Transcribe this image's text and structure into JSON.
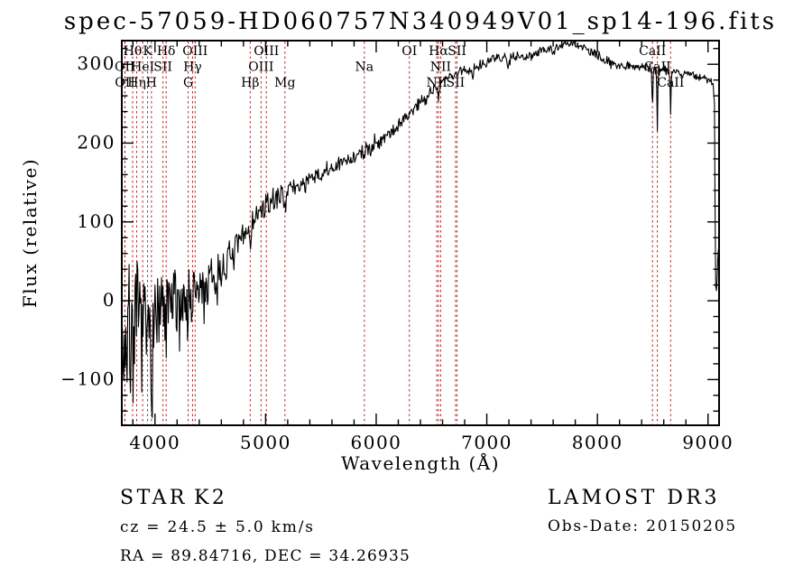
{
  "title": "spec-57059-HD060757N340949V01_sp14-196.fits",
  "annotations": {
    "class_label": "STAR",
    "subclass": "K2",
    "survey": "LAMOST DR3",
    "cz": "cz = 24.5 ± 5.0 km/s",
    "obs_date": "Obs-Date: 20150205",
    "ra_dec": "RA =  89.84716, DEC =  34.26935"
  },
  "chart_data": {
    "type": "line",
    "title": "spec-57059-HD060757N340949V01_sp14-196.fits",
    "xlabel": "Wavelength (Å)",
    "ylabel": "Flux (relative)",
    "xlim": [
      3700,
      9100
    ],
    "ylim": [
      -158,
      330
    ],
    "xticks": [
      4000,
      5000,
      6000,
      7000,
      8000,
      9000
    ],
    "yticks": [
      -100,
      0,
      100,
      200,
      300
    ],
    "x_minor_step": 200,
    "y_minor_step": 20,
    "grid": false,
    "line_color": "#000000",
    "marker_color": "#b22a2a",
    "spectral_lines": [
      {
        "label": "OII",
        "wavelength": 3727,
        "row": 2
      },
      {
        "label": "OII",
        "wavelength": 3729,
        "row": 3
      },
      {
        "label": "Hθ",
        "wavelength": 3798,
        "row": 1
      },
      {
        "label": "Hη",
        "wavelength": 3835,
        "row": 3
      },
      {
        "label": "HeI",
        "wavelength": 3889,
        "row": 2
      },
      {
        "label": "K",
        "wavelength": 3933,
        "row": 1
      },
      {
        "label": "H",
        "wavelength": 3968,
        "row": 3
      },
      {
        "label": "SII",
        "wavelength": 4072,
        "row": 2
      },
      {
        "label": "Hδ",
        "wavelength": 4101,
        "row": 1
      },
      {
        "label": "G",
        "wavelength": 4300,
        "row": 3
      },
      {
        "label": "Hγ",
        "wavelength": 4340,
        "row": 2
      },
      {
        "label": "OIII",
        "wavelength": 4363,
        "row": 1
      },
      {
        "label": "Hβ",
        "wavelength": 4861,
        "row": 3
      },
      {
        "label": "OIII",
        "wavelength": 4959,
        "row": 2
      },
      {
        "label": "OIII",
        "wavelength": 5007,
        "row": 1
      },
      {
        "label": "Mg",
        "wavelength": 5175,
        "row": 3
      },
      {
        "label": "Na",
        "wavelength": 5893,
        "row": 2
      },
      {
        "label": "OI",
        "wavelength": 6300,
        "row": 1
      },
      {
        "label": "NII",
        "wavelength": 6548,
        "row": 3
      },
      {
        "label": "Hα",
        "wavelength": 6563,
        "row": 1
      },
      {
        "label": "NII",
        "wavelength": 6583,
        "row": 2
      },
      {
        "label": "SII",
        "wavelength": 6717,
        "row": 3
      },
      {
        "label": "SII",
        "wavelength": 6731,
        "row": 1
      },
      {
        "label": "CaII",
        "wavelength": 8498,
        "row": 1
      },
      {
        "label": "CaII",
        "wavelength": 8542,
        "row": 2
      },
      {
        "label": "CaII",
        "wavelength": 8662,
        "row": 3
      }
    ],
    "continuum": [
      [
        3700,
        -50
      ],
      [
        3750,
        -30
      ],
      [
        3850,
        -20
      ],
      [
        3950,
        -25
      ],
      [
        4050,
        -15
      ],
      [
        4150,
        0
      ],
      [
        4250,
        5
      ],
      [
        4350,
        12
      ],
      [
        4450,
        18
      ],
      [
        4550,
        30
      ],
      [
        4650,
        48
      ],
      [
        4750,
        68
      ],
      [
        4850,
        95
      ],
      [
        4950,
        112
      ],
      [
        5050,
        125
      ],
      [
        5150,
        136
      ],
      [
        5250,
        143
      ],
      [
        5350,
        149
      ],
      [
        5450,
        156
      ],
      [
        5550,
        163
      ],
      [
        5650,
        171
      ],
      [
        5750,
        179
      ],
      [
        5850,
        187
      ],
      [
        5950,
        196
      ],
      [
        6050,
        206
      ],
      [
        6150,
        216
      ],
      [
        6250,
        229
      ],
      [
        6350,
        246
      ],
      [
        6450,
        259
      ],
      [
        6550,
        273
      ],
      [
        6650,
        283
      ],
      [
        6750,
        290
      ],
      [
        6850,
        294
      ],
      [
        6950,
        301
      ],
      [
        7050,
        306
      ],
      [
        7150,
        309
      ],
      [
        7250,
        311
      ],
      [
        7350,
        309
      ],
      [
        7450,
        316
      ],
      [
        7550,
        319
      ],
      [
        7650,
        323
      ],
      [
        7750,
        326
      ],
      [
        7850,
        324
      ],
      [
        7950,
        314
      ],
      [
        8050,
        306
      ],
      [
        8150,
        301
      ],
      [
        8250,
        298
      ],
      [
        8350,
        298
      ],
      [
        8450,
        296
      ],
      [
        8550,
        294
      ],
      [
        8650,
        293
      ],
      [
        8750,
        289
      ],
      [
        8850,
        287
      ],
      [
        8950,
        283
      ],
      [
        9020,
        279
      ],
      [
        9048,
        273
      ],
      [
        9058,
        250
      ],
      [
        9064,
        110
      ],
      [
        9070,
        15
      ],
      [
        9078,
        10
      ],
      [
        9086,
        45
      ],
      [
        9092,
        65
      ]
    ],
    "noise_amplitude": [
      [
        3700,
        85
      ],
      [
        3760,
        65
      ],
      [
        3850,
        50
      ],
      [
        3950,
        45
      ],
      [
        4050,
        42
      ],
      [
        4150,
        38
      ],
      [
        4250,
        33
      ],
      [
        4350,
        30
      ],
      [
        4450,
        28
      ],
      [
        4550,
        24
      ],
      [
        4650,
        20
      ],
      [
        4750,
        18
      ],
      [
        4850,
        16
      ],
      [
        4950,
        14
      ],
      [
        5100,
        12
      ],
      [
        5300,
        11
      ],
      [
        5500,
        10
      ],
      [
        5800,
        9
      ],
      [
        6100,
        9
      ],
      [
        6400,
        8
      ],
      [
        6700,
        7
      ],
      [
        7000,
        6
      ],
      [
        7400,
        6
      ],
      [
        7800,
        5
      ],
      [
        8200,
        5
      ],
      [
        8600,
        6
      ],
      [
        8900,
        5
      ],
      [
        9040,
        4
      ],
      [
        9100,
        2
      ]
    ],
    "absorption_features": [
      [
        3933,
        45,
        6
      ],
      [
        3968,
        40,
        6
      ],
      [
        4101,
        28,
        6
      ],
      [
        4340,
        22,
        6
      ],
      [
        4861,
        25,
        7
      ],
      [
        5175,
        13,
        8
      ],
      [
        5893,
        15,
        7
      ],
      [
        6563,
        20,
        5
      ],
      [
        6870,
        12,
        8
      ],
      [
        7190,
        12,
        10
      ],
      [
        7605,
        12,
        8
      ],
      [
        8498,
        50,
        4
      ],
      [
        8542,
        78,
        4
      ],
      [
        8662,
        57,
        4
      ]
    ],
    "noise_seed": 7
  }
}
